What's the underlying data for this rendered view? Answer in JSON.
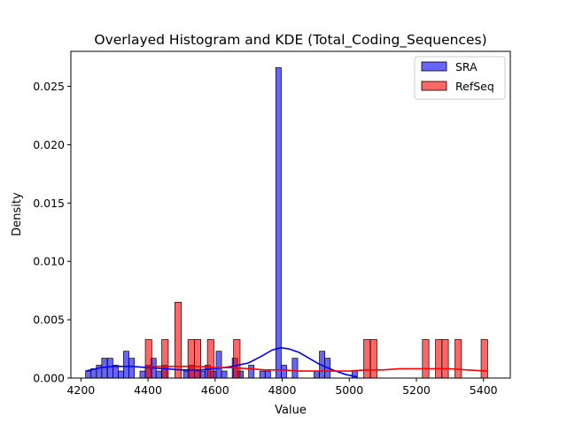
{
  "chart_data": {
    "type": "histogram+kde",
    "title": "Overlayed Histogram and KDE (Total_Coding_Sequences)",
    "xlabel": "Value",
    "ylabel": "Density",
    "xlim": [
      4170,
      5480
    ],
    "ylim": [
      0,
      0.028
    ],
    "x_ticks": [
      4200,
      4400,
      4600,
      4800,
      5000,
      5200,
      5400
    ],
    "x_tick_labels": [
      "4200",
      "4400",
      "4600",
      "4800",
      "5000",
      "5200",
      "5400"
    ],
    "y_ticks": [
      0,
      0.005,
      0.01,
      0.015,
      0.02,
      0.025
    ],
    "y_tick_labels": [
      "0.000",
      "0.005",
      "0.010",
      "0.015",
      "0.020",
      "0.025"
    ],
    "grid": false,
    "legend_position": "top-right",
    "series": [
      {
        "name": "SRA",
        "color": "#0000ff",
        "bin_width": 16.2,
        "bins": [
          [
            4214,
            0.0006
          ],
          [
            4230,
            0.0008
          ],
          [
            4246,
            0.0011
          ],
          [
            4262,
            0.0017
          ],
          [
            4279,
            0.0017
          ],
          [
            4295,
            0.0011
          ],
          [
            4311,
            0.0006
          ],
          [
            4327,
            0.0023
          ],
          [
            4343,
            0.0017
          ],
          [
            4376,
            0.0006
          ],
          [
            4392,
            0.0011
          ],
          [
            4408,
            0.0017
          ],
          [
            4424,
            0.0006
          ],
          [
            4441,
            0.0011
          ],
          [
            4506,
            0.0006
          ],
          [
            4522,
            0.0011
          ],
          [
            4538,
            0.0006
          ],
          [
            4554,
            0.0006
          ],
          [
            4570,
            0.0011
          ],
          [
            4587,
            0.0006
          ],
          [
            4603,
            0.0023
          ],
          [
            4619,
            0.0006
          ],
          [
            4651,
            0.0017
          ],
          [
            4668,
            0.0006
          ],
          [
            4700,
            0.0011
          ],
          [
            4733,
            0.0006
          ],
          [
            4749,
            0.0006
          ],
          [
            4781,
            0.0266
          ],
          [
            4797,
            0.0011
          ],
          [
            4830,
            0.0017
          ],
          [
            4895,
            0.0006
          ],
          [
            4911,
            0.0023
          ],
          [
            4927,
            0.0017
          ],
          [
            5008,
            0.0006
          ]
        ],
        "kde": [
          [
            4214,
            0.0006
          ],
          [
            4260,
            0.0009
          ],
          [
            4300,
            0.001
          ],
          [
            4350,
            0.001
          ],
          [
            4400,
            0.0009
          ],
          [
            4450,
            0.0008
          ],
          [
            4500,
            0.0007
          ],
          [
            4550,
            0.0007
          ],
          [
            4600,
            0.0008
          ],
          [
            4650,
            0.001
          ],
          [
            4700,
            0.0013
          ],
          [
            4740,
            0.0019
          ],
          [
            4770,
            0.0024
          ],
          [
            4795,
            0.0026
          ],
          [
            4820,
            0.0025
          ],
          [
            4850,
            0.0022
          ],
          [
            4880,
            0.0017
          ],
          [
            4910,
            0.0012
          ],
          [
            4950,
            0.0007
          ],
          [
            4990,
            0.0003
          ],
          [
            5024,
            0.0001
          ]
        ]
      },
      {
        "name": "RefSeq",
        "color": "#ff0000",
        "bin_width": 19.4,
        "bins": [
          [
            4392,
            0.0033
          ],
          [
            4441,
            0.0033
          ],
          [
            4480,
            0.0065
          ],
          [
            4519,
            0.0033
          ],
          [
            4538,
            0.0033
          ],
          [
            4577,
            0.0033
          ],
          [
            4655,
            0.0033
          ],
          [
            5043,
            0.0033
          ],
          [
            5063,
            0.0033
          ],
          [
            5218,
            0.0033
          ],
          [
            5257,
            0.0033
          ],
          [
            5276,
            0.0033
          ],
          [
            5315,
            0.0033
          ],
          [
            5393,
            0.0033
          ]
        ],
        "kde": [
          [
            4392,
            0.001
          ],
          [
            4450,
            0.001
          ],
          [
            4500,
            0.001
          ],
          [
            4550,
            0.001
          ],
          [
            4600,
            0.0009
          ],
          [
            4650,
            0.0009
          ],
          [
            4700,
            0.0008
          ],
          [
            4750,
            0.0007
          ],
          [
            4800,
            0.0007
          ],
          [
            4850,
            0.0006
          ],
          [
            4900,
            0.0006
          ],
          [
            4950,
            0.0006
          ],
          [
            5000,
            0.0006
          ],
          [
            5050,
            0.0007
          ],
          [
            5100,
            0.0007
          ],
          [
            5150,
            0.0008
          ],
          [
            5200,
            0.0008
          ],
          [
            5250,
            0.0008
          ],
          [
            5300,
            0.0008
          ],
          [
            5350,
            0.0007
          ],
          [
            5413,
            0.0006
          ]
        ]
      }
    ]
  }
}
